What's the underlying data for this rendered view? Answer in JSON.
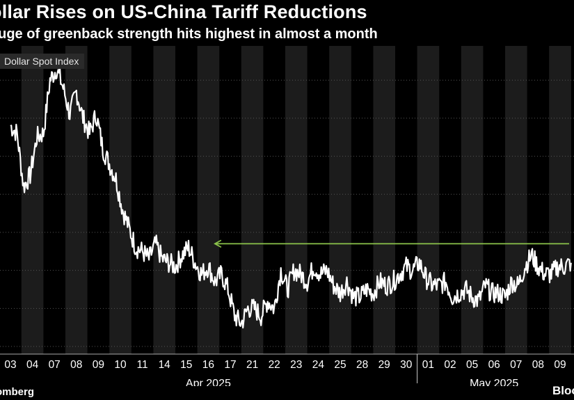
{
  "header": {
    "title": "ollar Rises on US-China Tariff Reductions",
    "subtitle": "auge of greenback strength hits highest in almost a month"
  },
  "footer": {
    "source_left": "omberg",
    "source_right": "Bloo"
  },
  "colors": {
    "background": "#000000",
    "band_alt": "#1c1c1c",
    "line": "#ffffff",
    "annotation_arrow": "#8bc34a"
  },
  "chart_data": {
    "type": "line",
    "title": "ollar Rises on US-China Tariff Reductions",
    "subtitle": "auge of greenback strength hits highest in almost a month",
    "legend": [
      "Dollar Spot Index"
    ],
    "legend_position": "top-left",
    "grid": true,
    "months": [
      {
        "label": "Apr 2025",
        "first_index": 0,
        "last_index": 18
      },
      {
        "label": "May 2025",
        "first_index": 19,
        "last_index": 25
      }
    ],
    "categories": [
      "03",
      "04",
      "07",
      "08",
      "09",
      "10",
      "11",
      "14",
      "15",
      "16",
      "17",
      "21",
      "22",
      "23",
      "24",
      "25",
      "28",
      "29",
      "30",
      "01",
      "02",
      "05",
      "06",
      "07",
      "08",
      "09"
    ],
    "series": [
      {
        "name": "Dollar Spot Index",
        "x": [
          0,
          0.3,
          0.6,
          0.9,
          1.2,
          1.5,
          1.8,
          2.1,
          2.4,
          2.7,
          3.0,
          3.3,
          3.6,
          3.9,
          4.2,
          4.5,
          4.8,
          5.1,
          5.4,
          5.7,
          6.0,
          6.3,
          6.6,
          6.9,
          7.2,
          7.5,
          7.8,
          8.1,
          8.4,
          8.7,
          9.0,
          9.3,
          9.6,
          9.9,
          10.2,
          10.5,
          10.8,
          11.1,
          11.4,
          11.7,
          12.0,
          12.3,
          12.6,
          12.9,
          13.2,
          13.5,
          13.8,
          14.1,
          14.4,
          14.7,
          15.0,
          15.3,
          15.6,
          15.9,
          16.2,
          16.5,
          16.8,
          17.1,
          17.4,
          17.7,
          18.0,
          18.3,
          18.6,
          18.9,
          19.2,
          19.5,
          19.8,
          20.1,
          20.4,
          20.7,
          21.0,
          21.3,
          21.6,
          21.9,
          22.2,
          22.5,
          22.8,
          23.1,
          23.4,
          23.7,
          24.0,
          24.3,
          24.6,
          24.9,
          25.2,
          25.5
        ],
        "values": [
          3.6,
          3.4,
          2.0,
          2.3,
          3.3,
          3.4,
          4.8,
          5.1,
          4.6,
          3.9,
          4.5,
          3.8,
          3.4,
          3.9,
          3.0,
          2.6,
          2.2,
          1.4,
          0.9,
          0.4,
          0.3,
          0.1,
          0.5,
          0.1,
          0.0,
          -0.1,
          0.2,
          0.4,
          0.0,
          -0.3,
          -0.1,
          -0.5,
          -0.3,
          -0.7,
          -1.4,
          -1.6,
          -1.2,
          -1.2,
          -1.4,
          -1.0,
          -1.2,
          -0.2,
          -0.7,
          -0.2,
          -0.3,
          -0.5,
          -0.1,
          -0.3,
          -0.2,
          -0.6,
          -0.8,
          -0.5,
          -0.9,
          -0.9,
          -0.7,
          -0.8,
          -0.5,
          -0.6,
          -0.5,
          -0.3,
          -0.1,
          -0.2,
          0.0,
          -0.4,
          -0.6,
          -0.6,
          -0.5,
          -0.9,
          -0.8,
          -0.7,
          -0.9,
          -1.0,
          -0.6,
          -0.8,
          -0.8,
          -0.9,
          -0.5,
          -0.6,
          -0.1,
          0.2,
          -0.1,
          -0.3,
          -0.3,
          -0.1,
          -0.1,
          0.0
        ]
      }
    ],
    "annotation": {
      "type": "arrow",
      "y_value": 0.5,
      "from_index": 25.7,
      "to_index": 9.3
    }
  }
}
